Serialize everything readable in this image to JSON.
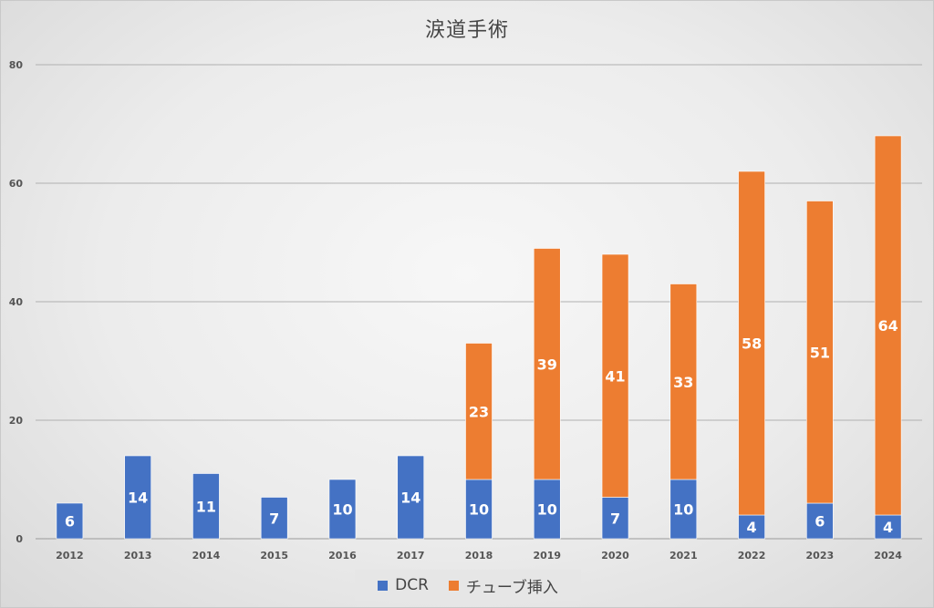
{
  "chart_data": {
    "type": "bar",
    "stacked": true,
    "title": "涙道手術",
    "xlabel": "",
    "ylabel": "",
    "categories": [
      "2012",
      "2013",
      "2014",
      "2015",
      "2016",
      "2017",
      "2018",
      "2019",
      "2020",
      "2021",
      "2022",
      "2023",
      "2024"
    ],
    "series": [
      {
        "name": "DCR",
        "color": "#4472c4",
        "values": [
          6,
          14,
          11,
          7,
          10,
          14,
          10,
          10,
          7,
          10,
          4,
          6,
          4
        ]
      },
      {
        "name": "チューブ挿入",
        "color": "#ed7d31",
        "values": [
          null,
          null,
          null,
          null,
          null,
          null,
          23,
          39,
          41,
          33,
          58,
          51,
          64
        ]
      }
    ],
    "ylim": [
      0,
      80
    ],
    "yticks": [
      0,
      20,
      40,
      60,
      80
    ],
    "grid": true,
    "legend_position": "bottom",
    "data_labels": true
  }
}
